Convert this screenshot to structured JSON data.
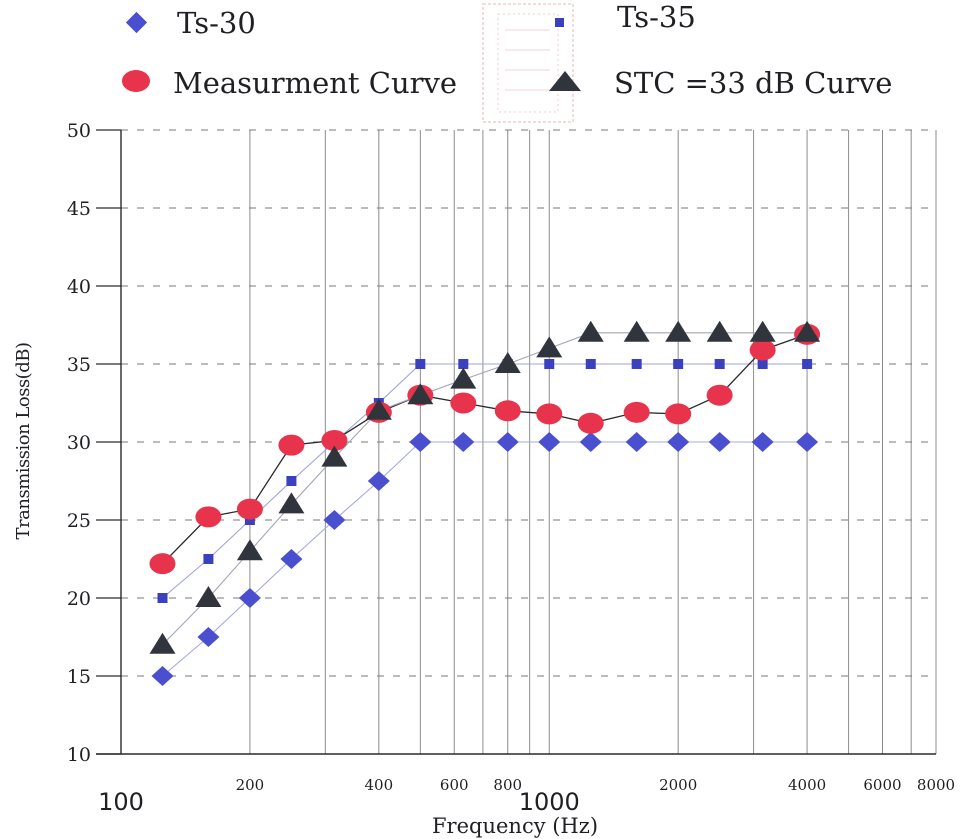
{
  "chart_data": {
    "type": "scatter",
    "xlabel": "Frequency (Hz)",
    "ylabel": "Transmission Loss(dB)",
    "x_scale": "log",
    "xlim": [
      100,
      8000
    ],
    "ylim": [
      10,
      50
    ],
    "yticks": [
      10,
      15,
      20,
      25,
      30,
      35,
      40,
      45,
      50
    ],
    "xticks": [
      {
        "value": 100,
        "label": "100",
        "size": "big"
      },
      {
        "value": 200,
        "label": "200",
        "size": "small"
      },
      {
        "value": 400,
        "label": "400",
        "size": "small"
      },
      {
        "value": 600,
        "label": "600",
        "size": "small"
      },
      {
        "value": 800,
        "label": "800",
        "size": "small"
      },
      {
        "value": 1000,
        "label": "1000",
        "size": "big"
      },
      {
        "value": 2000,
        "label": "2000",
        "size": "small"
      },
      {
        "value": 4000,
        "label": "4000",
        "size": "small"
      },
      {
        "value": 6000,
        "label": "6000",
        "size": "small"
      },
      {
        "value": 8000,
        "label": "8000",
        "size": "small"
      }
    ],
    "vgrid": [
      200,
      300,
      400,
      500,
      600,
      700,
      800,
      900,
      1000,
      2000,
      3000,
      4000,
      5000,
      6000,
      7000,
      8000
    ],
    "legend_position": "top",
    "series": [
      {
        "name": "Ts-30",
        "marker": "diamond",
        "color": "#4a4fd0",
        "line_color": "#a6a8e2",
        "x": [
          125,
          160,
          200,
          250,
          315,
          400,
          500,
          630,
          800,
          1000,
          1250,
          1600,
          2000,
          2500,
          3150,
          4000
        ],
        "y": [
          15,
          17.5,
          20,
          22.5,
          25,
          27.5,
          30,
          30,
          30,
          30,
          30,
          30,
          30,
          30,
          30,
          30
        ]
      },
      {
        "name": "Ts-35",
        "marker": "square",
        "color": "#3b40bf",
        "line_color": "#9fa2de",
        "x": [
          125,
          160,
          200,
          250,
          315,
          400,
          500,
          630,
          800,
          1000,
          1250,
          1600,
          2000,
          2500,
          3150,
          4000
        ],
        "y": [
          20,
          22.5,
          25,
          27.5,
          30,
          32.5,
          35,
          35,
          35,
          35,
          35,
          35,
          35,
          35,
          35,
          35
        ]
      },
      {
        "name": "Measurment Curve",
        "marker": "circle",
        "color": "#e8334c",
        "line_color": "#2a2a2a",
        "x": [
          125,
          160,
          200,
          250,
          315,
          400,
          500,
          630,
          800,
          1000,
          1250,
          1600,
          2000,
          2500,
          3150,
          4000
        ],
        "y": [
          22.2,
          25.2,
          25.7,
          29.8,
          30.1,
          31.9,
          33,
          32.5,
          32,
          31.8,
          31.2,
          31.9,
          31.8,
          33,
          35.9,
          36.9
        ]
      },
      {
        "name": "STC =33 dB Curve",
        "marker": "triangle",
        "color": "#30343c",
        "line_color": "#a3a5b8",
        "x": [
          125,
          160,
          200,
          250,
          315,
          400,
          500,
          630,
          800,
          1000,
          1250,
          1600,
          2000,
          2500,
          3150,
          4000
        ],
        "y": [
          17,
          20,
          23,
          26,
          29,
          32,
          33,
          34,
          35,
          36,
          37,
          37,
          37,
          37,
          37,
          37
        ]
      }
    ]
  }
}
